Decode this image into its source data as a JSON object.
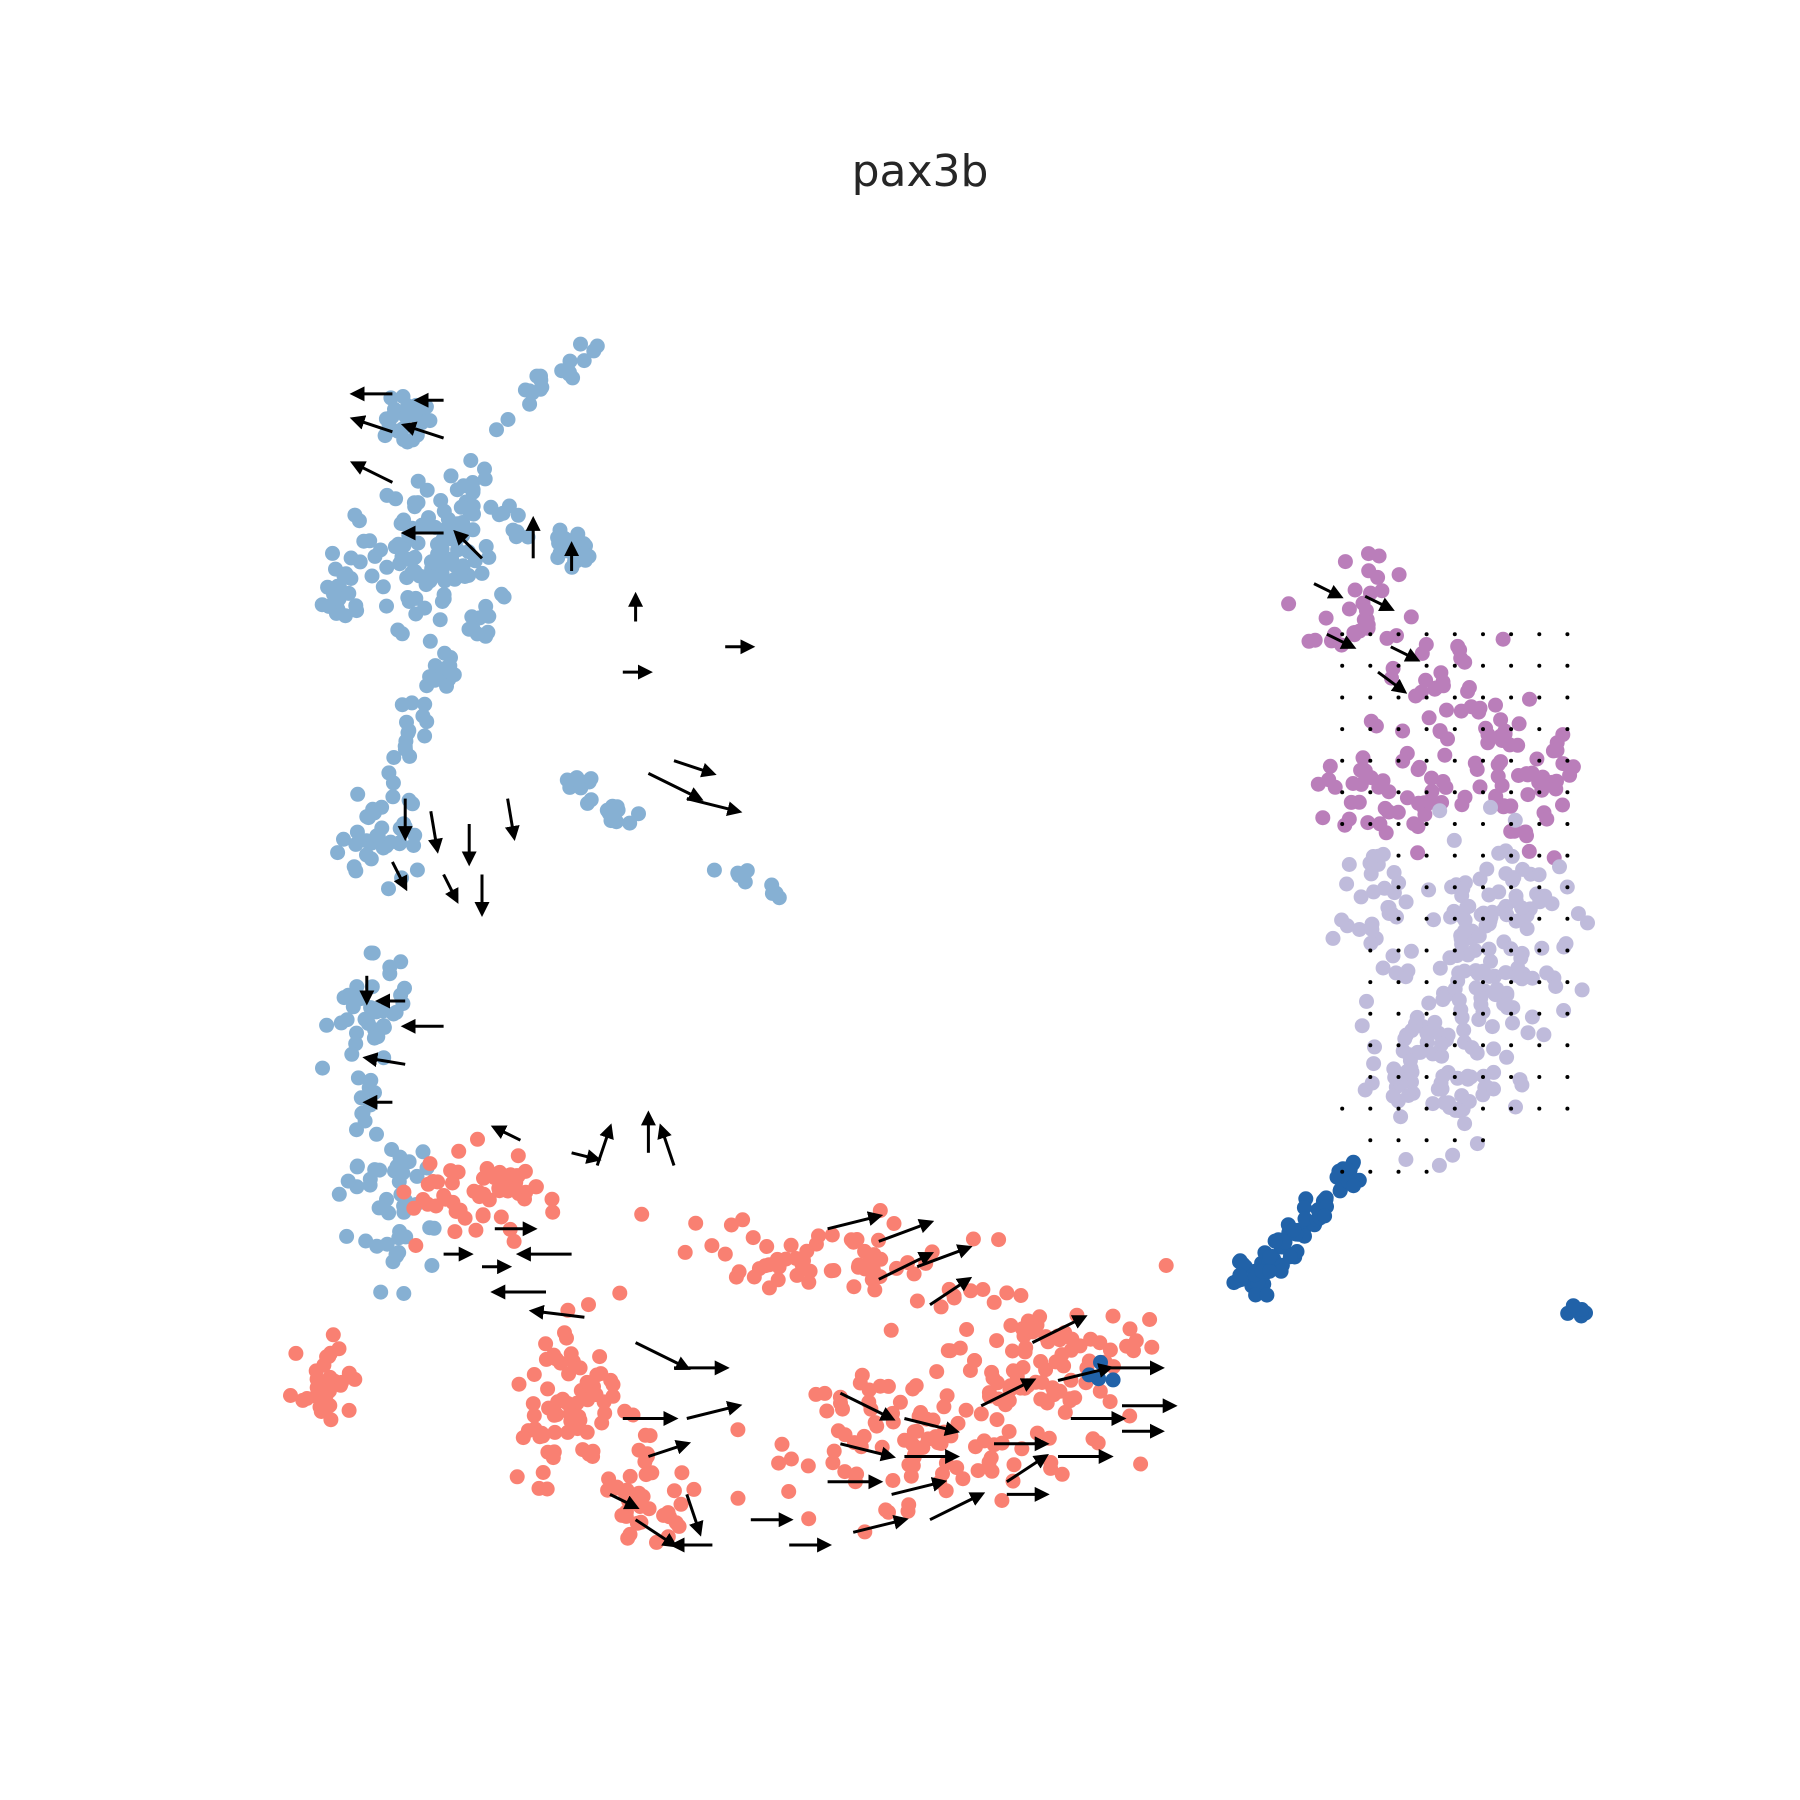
{
  "chart_data": {
    "type": "scatter",
    "subtype": "umap-velocity-stream",
    "title": "pax3b",
    "xlabel": "",
    "ylabel": "",
    "axes_visible": false,
    "grid": false,
    "xlim": [
      0,
      100
    ],
    "ylim": [
      0,
      100
    ],
    "point_colors": {
      "steelblue": "#86B0D3",
      "salmon": "#F98072",
      "orchid": "#BA7EBA",
      "lavender": "#BFBBDB",
      "darkblue": "#2162A8"
    },
    "clusters": [
      {
        "name": "cluster-1",
        "color": "steelblue",
        "blobs": [
          {
            "cx": 9,
            "cy": 11,
            "rx": 1.6,
            "ry": 1.6,
            "n": 25
          },
          {
            "cx": 4,
            "cy": 24,
            "rx": 1.3,
            "ry": 2.0,
            "n": 20
          },
          {
            "cx": 9,
            "cy": 22,
            "rx": 3.5,
            "ry": 5.0,
            "n": 60
          },
          {
            "cx": 14,
            "cy": 20,
            "rx": 3.5,
            "ry": 5.0,
            "n": 60
          },
          {
            "cx": 22,
            "cy": 21,
            "rx": 1.4,
            "ry": 1.4,
            "n": 25
          },
          {
            "cx": 12,
            "cy": 31,
            "rx": 1.0,
            "ry": 2.0,
            "n": 15
          },
          {
            "cx": 7,
            "cy": 44,
            "rx": 2.5,
            "ry": 3.0,
            "n": 35
          },
          {
            "cx": 6,
            "cy": 58,
            "rx": 2.5,
            "ry": 3.5,
            "n": 35
          },
          {
            "cx": 8,
            "cy": 74,
            "rx": 3.0,
            "ry": 5.0,
            "n": 40
          },
          {
            "cx": 15,
            "cy": 27,
            "rx": 1.0,
            "ry": 1.2,
            "n": 10
          }
        ]
      },
      {
        "name": "cluster-1-streak",
        "color": "steelblue",
        "lines": [
          {
            "x1": 16,
            "y1": 11,
            "x2": 24,
            "y2": 5,
            "n": 20
          },
          {
            "x1": 10,
            "y1": 33,
            "x2": 8,
            "y2": 41,
            "n": 18
          },
          {
            "x1": 6,
            "y1": 62,
            "x2": 5,
            "y2": 72,
            "n": 14
          },
          {
            "x1": 21,
            "y1": 39,
            "x2": 27,
            "y2": 43,
            "n": 18
          },
          {
            "x1": 34,
            "y1": 46,
            "x2": 38,
            "y2": 49,
            "n": 10
          }
        ]
      },
      {
        "name": "cluster-2",
        "color": "salmon",
        "blobs": [
          {
            "cx": 3,
            "cy": 87,
            "rx": 2.0,
            "ry": 2.5,
            "n": 30
          },
          {
            "cx": 15,
            "cy": 73,
            "rx": 5.0,
            "ry": 3.5,
            "n": 60
          },
          {
            "cx": 22,
            "cy": 88,
            "rx": 4.0,
            "ry": 6.0,
            "n": 70
          },
          {
            "cx": 42,
            "cy": 77,
            "rx": 9.0,
            "ry": 2.5,
            "n": 60
          },
          {
            "cx": 50,
            "cy": 91,
            "rx": 11.0,
            "ry": 5.0,
            "n": 110
          },
          {
            "cx": 58,
            "cy": 85,
            "rx": 7.0,
            "ry": 5.0,
            "n": 80
          },
          {
            "cx": 28,
            "cy": 96,
            "rx": 4.0,
            "ry": 4.0,
            "n": 40
          }
        ]
      },
      {
        "name": "cluster-3",
        "color": "orchid",
        "blobs": [
          {
            "cx": 83,
            "cy": 26,
            "rx": 3.5,
            "ry": 3.5,
            "n": 30
          },
          {
            "cx": 90,
            "cy": 36,
            "rx": 4.5,
            "ry": 5.5,
            "n": 60
          },
          {
            "cx": 97,
            "cy": 40,
            "rx": 3.0,
            "ry": 4.0,
            "n": 40
          },
          {
            "cx": 85,
            "cy": 41,
            "rx": 5.0,
            "ry": 2.5,
            "n": 35
          }
        ]
      },
      {
        "name": "cluster-4",
        "color": "lavender",
        "blobs": [
          {
            "cx": 94,
            "cy": 52,
            "rx": 5.0,
            "ry": 7.0,
            "n": 120
          },
          {
            "cx": 90,
            "cy": 62,
            "rx": 5.0,
            "ry": 5.0,
            "n": 90
          },
          {
            "cx": 85,
            "cy": 50,
            "rx": 2.5,
            "ry": 4.0,
            "n": 30
          }
        ]
      },
      {
        "name": "cluster-5",
        "color": "darkblue",
        "lines": [
          {
            "x1": 83,
            "y1": 70,
            "x2": 75,
            "y2": 80,
            "n": 70
          },
          {
            "x1": 74,
            "y1": 77,
            "x2": 74,
            "y2": 80,
            "n": 8
          },
          {
            "x1": 100,
            "y1": 81,
            "x2": 101,
            "y2": 81.4,
            "n": 5
          },
          {
            "x1": 63,
            "y1": 86,
            "x2": 63.5,
            "y2": 87,
            "n": 4
          }
        ]
      }
    ],
    "velocity_arrows": [
      {
        "x": 8,
        "y": 9,
        "dx": -3,
        "dy": 0
      },
      {
        "x": 12,
        "y": 9.5,
        "dx": -2,
        "dy": 0
      },
      {
        "x": 8,
        "y": 12,
        "dx": -3,
        "dy": -1
      },
      {
        "x": 12,
        "y": 12.5,
        "dx": -3,
        "dy": -1
      },
      {
        "x": 8,
        "y": 16,
        "dx": -3,
        "dy": -1.5
      },
      {
        "x": 12,
        "y": 20,
        "dx": -3,
        "dy": 0
      },
      {
        "x": 15,
        "y": 22,
        "dx": -2,
        "dy": -2
      },
      {
        "x": 19,
        "y": 22,
        "dx": 0,
        "dy": -3
      },
      {
        "x": 22,
        "y": 23,
        "dx": 0,
        "dy": -2
      },
      {
        "x": 27,
        "y": 27,
        "dx": 0,
        "dy": -2
      },
      {
        "x": 34,
        "y": 29,
        "dx": 2,
        "dy": 0
      },
      {
        "x": 26,
        "y": 31,
        "dx": 2,
        "dy": 0
      },
      {
        "x": 28,
        "y": 39,
        "dx": 4,
        "dy": 2
      },
      {
        "x": 31,
        "y": 41,
        "dx": 4,
        "dy": 1
      },
      {
        "x": 30,
        "y": 38,
        "dx": 3,
        "dy": 1
      },
      {
        "x": 9,
        "y": 41,
        "dx": 0,
        "dy": 3
      },
      {
        "x": 11,
        "y": 42,
        "dx": 0.5,
        "dy": 3
      },
      {
        "x": 14,
        "y": 43,
        "dx": 0,
        "dy": 3
      },
      {
        "x": 17,
        "y": 41,
        "dx": 0.5,
        "dy": 3
      },
      {
        "x": 8,
        "y": 46,
        "dx": 1,
        "dy": 2
      },
      {
        "x": 12,
        "y": 47,
        "dx": 1,
        "dy": 2
      },
      {
        "x": 15,
        "y": 47,
        "dx": 0,
        "dy": 3
      },
      {
        "x": 6,
        "y": 55,
        "dx": 0,
        "dy": 2
      },
      {
        "x": 9,
        "y": 57,
        "dx": -2,
        "dy": 0
      },
      {
        "x": 12,
        "y": 59,
        "dx": -3,
        "dy": 0
      },
      {
        "x": 9,
        "y": 62,
        "dx": -3,
        "dy": -0.5
      },
      {
        "x": 8,
        "y": 65,
        "dx": -2,
        "dy": 0
      },
      {
        "x": 18,
        "y": 68,
        "dx": -2,
        "dy": -1
      },
      {
        "x": 22,
        "y": 69,
        "dx": 2,
        "dy": 0.5
      },
      {
        "x": 24,
        "y": 70,
        "dx": 1,
        "dy": -3
      },
      {
        "x": 28,
        "y": 69,
        "dx": 0,
        "dy": -3
      },
      {
        "x": 30,
        "y": 70,
        "dx": -1,
        "dy": -3
      },
      {
        "x": 12,
        "y": 77,
        "dx": 2,
        "dy": 0
      },
      {
        "x": 15,
        "y": 78,
        "dx": 2,
        "dy": 0
      },
      {
        "x": 16,
        "y": 75,
        "dx": 3,
        "dy": 0
      },
      {
        "x": 20,
        "y": 80,
        "dx": -4,
        "dy": 0
      },
      {
        "x": 22,
        "y": 77,
        "dx": -4,
        "dy": 0
      },
      {
        "x": 23,
        "y": 82,
        "dx": -4,
        "dy": -0.5
      },
      {
        "x": 27,
        "y": 84,
        "dx": 4,
        "dy": 2
      },
      {
        "x": 30,
        "y": 86,
        "dx": 4,
        "dy": 0
      },
      {
        "x": 31,
        "y": 90,
        "dx": 4,
        "dy": -1
      },
      {
        "x": 26,
        "y": 90,
        "dx": 4,
        "dy": 0
      },
      {
        "x": 28,
        "y": 93,
        "dx": 3,
        "dy": -1
      },
      {
        "x": 25,
        "y": 96,
        "dx": 2,
        "dy": 1
      },
      {
        "x": 27,
        "y": 98,
        "dx": 3,
        "dy": 2
      },
      {
        "x": 31,
        "y": 96,
        "dx": 1,
        "dy": 3
      },
      {
        "x": 33,
        "y": 100,
        "dx": -3,
        "dy": 0
      },
      {
        "x": 42,
        "y": 75,
        "dx": 4,
        "dy": -1
      },
      {
        "x": 46,
        "y": 76,
        "dx": 4,
        "dy": -1.5
      },
      {
        "x": 49,
        "y": 78,
        "dx": 4,
        "dy": -1.5
      },
      {
        "x": 46,
        "y": 79,
        "dx": 4,
        "dy": -2
      },
      {
        "x": 50,
        "y": 81,
        "dx": 3,
        "dy": -2
      },
      {
        "x": 43,
        "y": 88,
        "dx": 4,
        "dy": 2
      },
      {
        "x": 48,
        "y": 90,
        "dx": 4,
        "dy": 1
      },
      {
        "x": 43,
        "y": 92,
        "dx": 4,
        "dy": 1
      },
      {
        "x": 48,
        "y": 93,
        "dx": 4,
        "dy": 0
      },
      {
        "x": 42,
        "y": 95,
        "dx": 4,
        "dy": 0
      },
      {
        "x": 47,
        "y": 96,
        "dx": 4,
        "dy": -1
      },
      {
        "x": 44,
        "y": 99,
        "dx": 4,
        "dy": -1
      },
      {
        "x": 50,
        "y": 98,
        "dx": 4,
        "dy": -2
      },
      {
        "x": 54,
        "y": 89,
        "dx": 4,
        "dy": -2
      },
      {
        "x": 55,
        "y": 92,
        "dx": 4,
        "dy": 0
      },
      {
        "x": 56,
        "y": 95,
        "dx": 3,
        "dy": -2
      },
      {
        "x": 58,
        "y": 84,
        "dx": 4,
        "dy": -2
      },
      {
        "x": 60,
        "y": 87,
        "dx": 4,
        "dy": -1
      },
      {
        "x": 61,
        "y": 90,
        "dx": 4,
        "dy": 0
      },
      {
        "x": 60,
        "y": 93,
        "dx": 4,
        "dy": 0
      },
      {
        "x": 64,
        "y": 86,
        "dx": 4,
        "dy": 0
      },
      {
        "x": 65,
        "y": 89,
        "dx": 4,
        "dy": 0
      },
      {
        "x": 65,
        "y": 91,
        "dx": 3,
        "dy": 0
      },
      {
        "x": 56,
        "y": 96,
        "dx": 3,
        "dy": 0
      },
      {
        "x": 36,
        "y": 98,
        "dx": 3,
        "dy": 0
      },
      {
        "x": 39,
        "y": 100,
        "dx": 3,
        "dy": 0
      },
      {
        "x": 80,
        "y": 24,
        "dx": 2,
        "dy": 1
      },
      {
        "x": 84,
        "y": 25,
        "dx": 2,
        "dy": 1
      },
      {
        "x": 81,
        "y": 28,
        "dx": 2,
        "dy": 1
      },
      {
        "x": 86,
        "y": 29,
        "dx": 2,
        "dy": 1
      },
      {
        "x": 85,
        "y": 31,
        "dx": 2,
        "dy": 1.5
      }
    ]
  }
}
